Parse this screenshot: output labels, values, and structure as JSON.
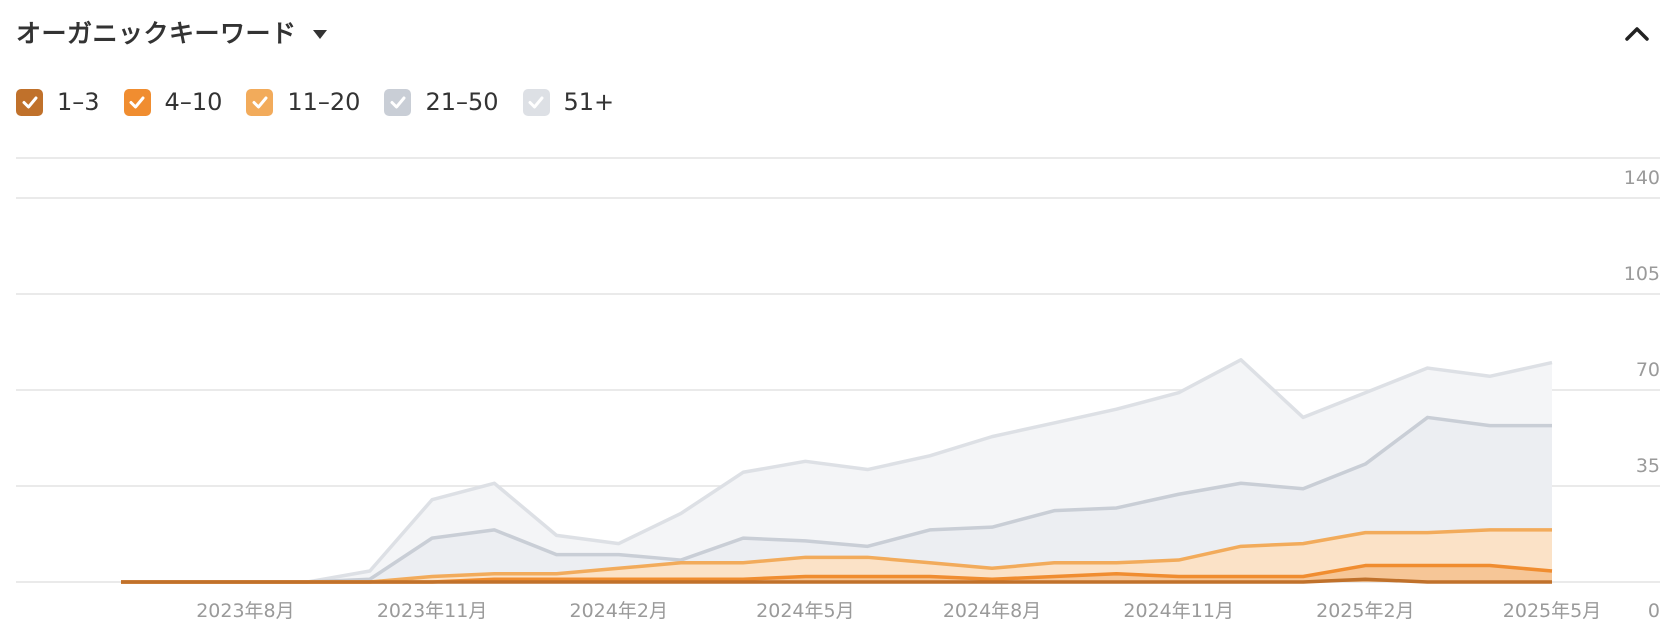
{
  "header": {
    "title": "オーガニックキーワード"
  },
  "legend": [
    {
      "label": "1–3",
      "color": "#c0712b"
    },
    {
      "label": "4–10",
      "color": "#f08d30"
    },
    {
      "label": "11–20",
      "color": "#f2ab5b"
    },
    {
      "label": "21–50",
      "color": "#c9ced6"
    },
    {
      "label": "51+",
      "color": "#dde0e5"
    }
  ],
  "chart_data": {
    "type": "area",
    "stacked": true,
    "x": [
      "2023-06",
      "2023-07",
      "2023-08",
      "2023-09",
      "2023-10",
      "2023-11",
      "2023-12",
      "2024-01",
      "2024-02",
      "2024-03",
      "2024-04",
      "2024-05",
      "2024-06",
      "2024-07",
      "2024-08",
      "2024-09",
      "2024-10",
      "2024-11",
      "2024-12",
      "2025-01",
      "2025-02",
      "2025-03",
      "2025-04",
      "2025-05"
    ],
    "x_ticks": [
      "2023年8月",
      "2023年11月",
      "2024年2月",
      "2024年5月",
      "2024年8月",
      "2024年11月",
      "2025年2月",
      "2025年5月"
    ],
    "y_ticks": [
      "0",
      "35",
      "70",
      "105",
      "140"
    ],
    "ylim": [
      0,
      140
    ],
    "grid": true,
    "series": [
      {
        "name": "1–3",
        "color": "#c0712b",
        "fill": "#e9b98b",
        "values": [
          0,
          0,
          0,
          0,
          0,
          0,
          0,
          0,
          0,
          0,
          0,
          0,
          0,
          0,
          0,
          0,
          0,
          0,
          0,
          0,
          1,
          0,
          0,
          0
        ]
      },
      {
        "name": "4–10",
        "color": "#f08d30",
        "fill": "#f6c697",
        "values": [
          0,
          0,
          0,
          0,
          0,
          0,
          1,
          1,
          1,
          1,
          1,
          2,
          2,
          2,
          1,
          2,
          3,
          2,
          2,
          2,
          5,
          6,
          6,
          4
        ]
      },
      {
        "name": "11–20",
        "color": "#f2ab5b",
        "fill": "#fbe2c7",
        "values": [
          0,
          0,
          0,
          0,
          0,
          2,
          2,
          2,
          4,
          6,
          6,
          7,
          7,
          5,
          4,
          5,
          4,
          6,
          11,
          12,
          12,
          12,
          13,
          15
        ]
      },
      {
        "name": "21–50",
        "color": "#c9ced6",
        "fill": "#eceef2",
        "values": [
          0,
          0,
          0,
          0,
          1,
          14,
          16,
          7,
          5,
          1,
          9,
          6,
          4,
          12,
          15,
          19,
          20,
          24,
          23,
          20,
          25,
          42,
          38,
          38
        ]
      },
      {
        "name": "51+",
        "color": "#dde0e5",
        "fill": "#f4f5f7",
        "values": [
          0,
          0,
          0,
          0,
          3,
          14,
          17,
          7,
          4,
          17,
          24,
          29,
          28,
          27,
          33,
          32,
          36,
          37,
          45,
          26,
          26,
          18,
          18,
          23
        ]
      }
    ]
  }
}
